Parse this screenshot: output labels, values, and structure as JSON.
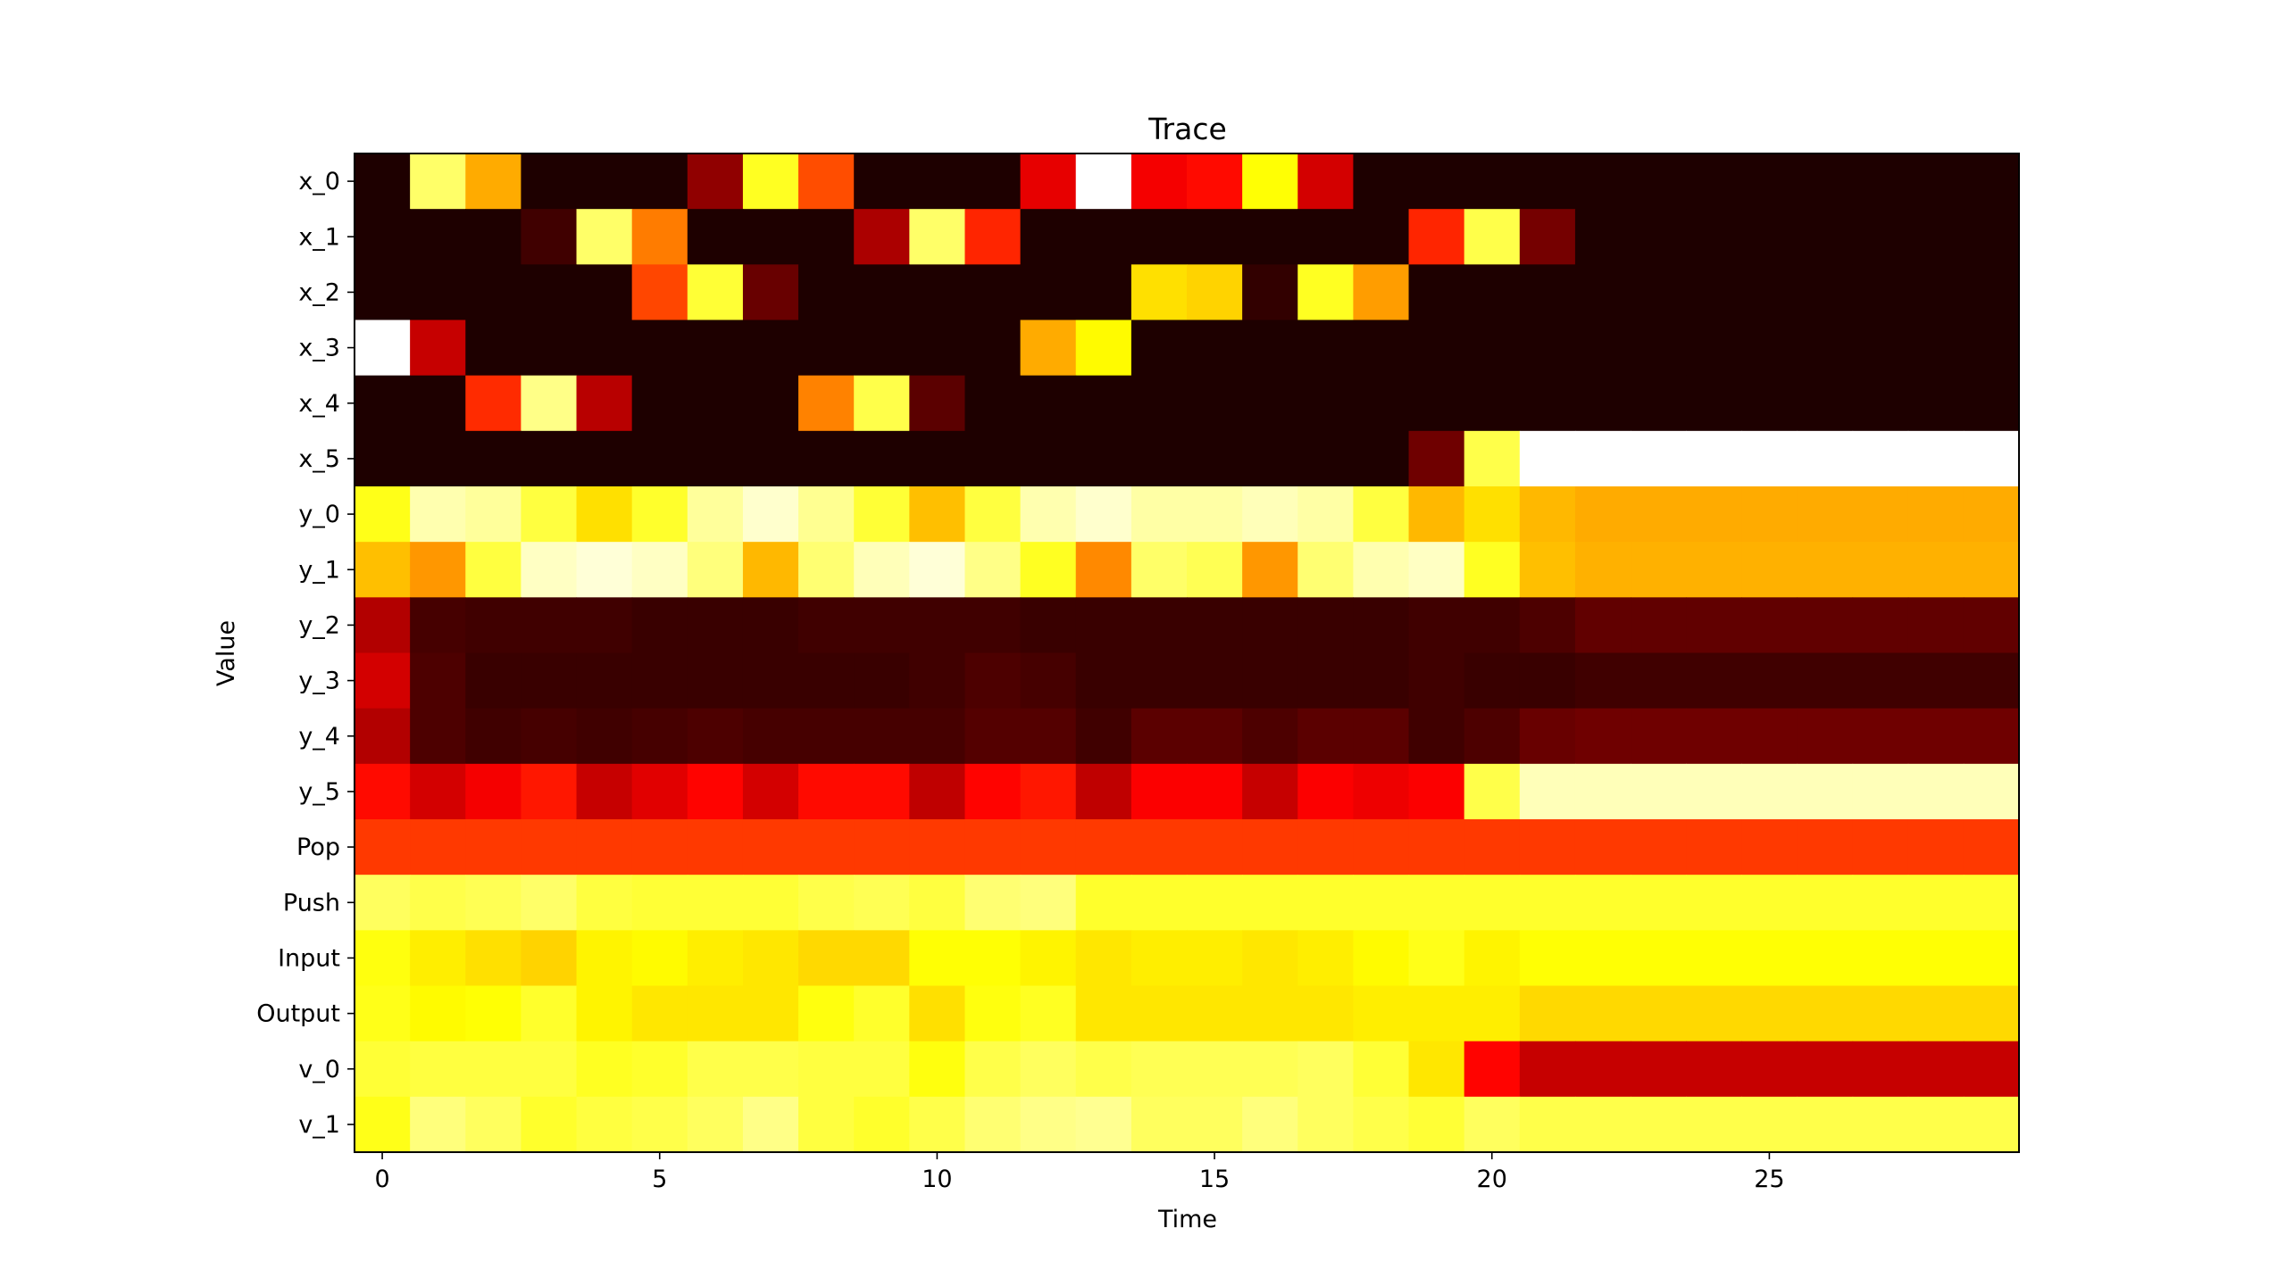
{
  "chart_data": {
    "type": "heatmap",
    "title": "Trace",
    "xlabel": "Time",
    "ylabel": "Value",
    "colormap": "hot",
    "value_range": [
      0,
      1
    ],
    "x_ticks": [
      0,
      5,
      10,
      15,
      20,
      25
    ],
    "x_tick_labels": [
      "0",
      "5",
      "10",
      "15",
      "20",
      "25"
    ],
    "columns": 30,
    "rows": [
      "x_0",
      "x_1",
      "x_2",
      "x_3",
      "x_4",
      "x_5",
      "y_0",
      "y_1",
      "y_2",
      "y_3",
      "y_4",
      "y_5",
      "Pop",
      "Push",
      "Input",
      "Output",
      "v_0",
      "v_1"
    ],
    "values": [
      [
        0.03,
        0.85,
        0.62,
        0.03,
        0.03,
        0.03,
        0.2,
        0.78,
        0.48,
        0.03,
        0.03,
        0.03,
        0.33,
        1.0,
        0.35,
        0.38,
        0.75,
        0.3,
        0.03,
        0.03,
        0.03,
        0.03,
        0.03,
        0.03,
        0.03,
        0.03,
        0.03,
        0.03,
        0.03,
        0.03
      ],
      [
        0.03,
        0.03,
        0.03,
        0.08,
        0.85,
        0.55,
        0.03,
        0.03,
        0.03,
        0.24,
        0.85,
        0.42,
        0.03,
        0.03,
        0.03,
        0.03,
        0.03,
        0.03,
        0.03,
        0.42,
        0.82,
        0.16,
        0.03,
        0.03,
        0.03,
        0.03,
        0.03,
        0.03,
        0.03,
        0.03
      ],
      [
        0.03,
        0.03,
        0.03,
        0.03,
        0.03,
        0.47,
        0.8,
        0.14,
        0.03,
        0.03,
        0.03,
        0.03,
        0.03,
        0.03,
        0.7,
        0.68,
        0.06,
        0.78,
        0.6,
        0.03,
        0.03,
        0.03,
        0.03,
        0.03,
        0.03,
        0.03,
        0.03,
        0.03,
        0.03,
        0.03
      ],
      [
        1.0,
        0.28,
        0.03,
        0.03,
        0.03,
        0.03,
        0.03,
        0.03,
        0.03,
        0.03,
        0.03,
        0.03,
        0.62,
        0.74,
        0.03,
        0.03,
        0.03,
        0.03,
        0.03,
        0.03,
        0.03,
        0.03,
        0.03,
        0.03,
        0.03,
        0.03,
        0.03,
        0.03,
        0.03,
        0.03
      ],
      [
        0.03,
        0.03,
        0.43,
        0.88,
        0.26,
        0.03,
        0.03,
        0.03,
        0.56,
        0.82,
        0.12,
        0.03,
        0.03,
        0.03,
        0.03,
        0.03,
        0.03,
        0.03,
        0.03,
        0.03,
        0.03,
        0.03,
        0.03,
        0.03,
        0.03,
        0.03,
        0.03,
        0.03,
        0.03,
        0.03
      ],
      [
        0.03,
        0.03,
        0.03,
        0.03,
        0.03,
        0.03,
        0.03,
        0.03,
        0.03,
        0.03,
        0.03,
        0.03,
        0.03,
        0.03,
        0.03,
        0.03,
        0.03,
        0.03,
        0.03,
        0.15,
        0.82,
        1.0,
        1.0,
        1.0,
        1.0,
        1.0,
        1.0,
        1.0,
        1.0,
        1.0
      ],
      [
        0.77,
        0.92,
        0.9,
        0.81,
        0.7,
        0.79,
        0.9,
        0.95,
        0.89,
        0.8,
        0.65,
        0.81,
        0.92,
        0.95,
        0.91,
        0.91,
        0.93,
        0.91,
        0.81,
        0.64,
        0.7,
        0.64,
        0.62,
        0.62,
        0.62,
        0.62,
        0.62,
        0.62,
        0.62,
        0.62
      ],
      [
        0.65,
        0.59,
        0.81,
        0.94,
        0.96,
        0.94,
        0.87,
        0.64,
        0.86,
        0.93,
        0.96,
        0.88,
        0.78,
        0.57,
        0.85,
        0.83,
        0.59,
        0.86,
        0.92,
        0.94,
        0.78,
        0.65,
        0.63,
        0.63,
        0.63,
        0.63,
        0.63,
        0.63,
        0.63,
        0.63
      ],
      [
        0.25,
        0.09,
        0.08,
        0.08,
        0.08,
        0.07,
        0.07,
        0.07,
        0.08,
        0.08,
        0.08,
        0.08,
        0.07,
        0.07,
        0.07,
        0.07,
        0.07,
        0.07,
        0.07,
        0.08,
        0.08,
        0.1,
        0.13,
        0.13,
        0.13,
        0.13,
        0.13,
        0.13,
        0.13,
        0.13
      ],
      [
        0.3,
        0.1,
        0.07,
        0.07,
        0.07,
        0.07,
        0.07,
        0.07,
        0.07,
        0.07,
        0.08,
        0.1,
        0.09,
        0.07,
        0.07,
        0.07,
        0.07,
        0.07,
        0.07,
        0.08,
        0.07,
        0.07,
        0.08,
        0.08,
        0.08,
        0.08,
        0.08,
        0.08,
        0.08,
        0.08
      ],
      [
        0.25,
        0.1,
        0.08,
        0.09,
        0.08,
        0.09,
        0.1,
        0.09,
        0.09,
        0.09,
        0.09,
        0.11,
        0.11,
        0.08,
        0.12,
        0.12,
        0.1,
        0.12,
        0.12,
        0.08,
        0.1,
        0.14,
        0.15,
        0.15,
        0.15,
        0.15,
        0.15,
        0.15,
        0.15,
        0.15
      ],
      [
        0.38,
        0.3,
        0.35,
        0.4,
        0.28,
        0.32,
        0.37,
        0.3,
        0.38,
        0.38,
        0.27,
        0.37,
        0.4,
        0.27,
        0.36,
        0.36,
        0.28,
        0.36,
        0.34,
        0.36,
        0.82,
        0.93,
        0.93,
        0.93,
        0.93,
        0.93,
        0.93,
        0.93,
        0.93,
        0.93
      ],
      [
        0.45,
        0.45,
        0.45,
        0.45,
        0.45,
        0.45,
        0.45,
        0.45,
        0.45,
        0.45,
        0.45,
        0.45,
        0.45,
        0.45,
        0.45,
        0.45,
        0.45,
        0.45,
        0.45,
        0.45,
        0.45,
        0.45,
        0.45,
        0.45,
        0.45,
        0.45,
        0.45,
        0.45,
        0.45,
        0.45
      ],
      [
        0.84,
        0.82,
        0.83,
        0.85,
        0.81,
        0.8,
        0.8,
        0.8,
        0.82,
        0.83,
        0.81,
        0.86,
        0.87,
        0.79,
        0.79,
        0.79,
        0.79,
        0.79,
        0.79,
        0.79,
        0.79,
        0.79,
        0.79,
        0.79,
        0.79,
        0.79,
        0.79,
        0.79,
        0.79,
        0.79
      ],
      [
        0.76,
        0.72,
        0.7,
        0.68,
        0.73,
        0.74,
        0.72,
        0.71,
        0.69,
        0.69,
        0.75,
        0.75,
        0.73,
        0.71,
        0.72,
        0.72,
        0.71,
        0.72,
        0.74,
        0.77,
        0.73,
        0.75,
        0.75,
        0.75,
        0.75,
        0.75,
        0.75,
        0.75,
        0.75,
        0.75
      ],
      [
        0.77,
        0.74,
        0.75,
        0.79,
        0.73,
        0.71,
        0.71,
        0.71,
        0.76,
        0.79,
        0.7,
        0.76,
        0.78,
        0.71,
        0.71,
        0.71,
        0.71,
        0.71,
        0.72,
        0.72,
        0.72,
        0.69,
        0.69,
        0.69,
        0.69,
        0.69,
        0.69,
        0.69,
        0.69,
        0.69
      ],
      [
        0.8,
        0.81,
        0.81,
        0.81,
        0.78,
        0.79,
        0.82,
        0.82,
        0.81,
        0.81,
        0.76,
        0.82,
        0.84,
        0.82,
        0.83,
        0.83,
        0.83,
        0.84,
        0.8,
        0.71,
        0.37,
        0.28,
        0.28,
        0.28,
        0.28,
        0.28,
        0.28,
        0.28,
        0.28,
        0.28
      ],
      [
        0.77,
        0.87,
        0.84,
        0.79,
        0.81,
        0.82,
        0.84,
        0.88,
        0.81,
        0.79,
        0.82,
        0.86,
        0.88,
        0.89,
        0.84,
        0.84,
        0.87,
        0.84,
        0.82,
        0.8,
        0.84,
        0.82,
        0.82,
        0.82,
        0.82,
        0.82,
        0.82,
        0.82,
        0.82,
        0.82
      ]
    ]
  }
}
